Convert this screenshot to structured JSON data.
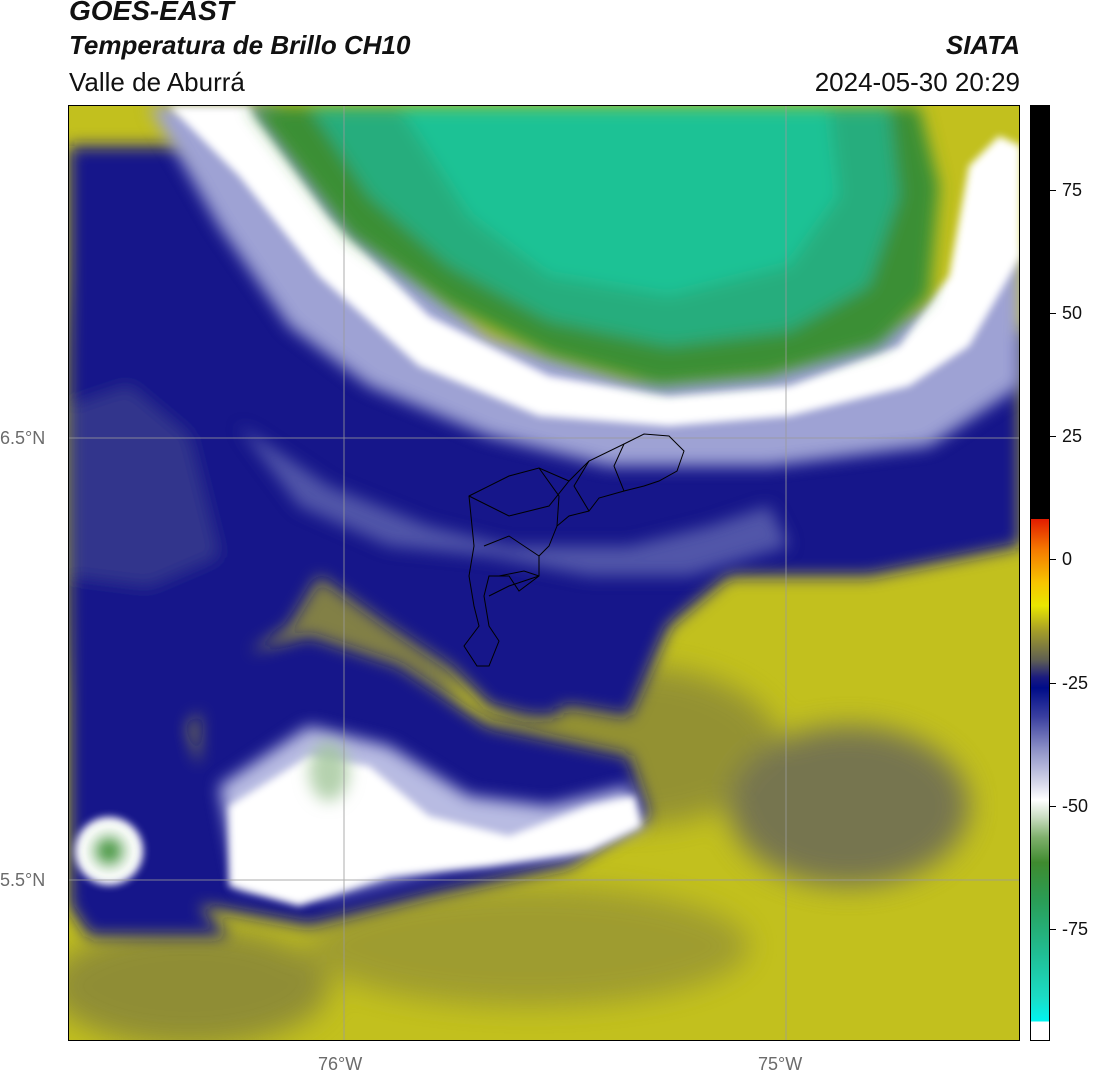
{
  "title": {
    "line1": "GOES-EAST",
    "line2": "Temperatura de Brillo CH10",
    "line3": "Valle de Aburrá"
  },
  "brand": "SIATA",
  "timestamp": "2024-05-30 20:29",
  "axes": {
    "lat_ticks": [
      "6.5°N",
      "5.5°N"
    ],
    "lon_ticks": [
      "76°W",
      "75°W"
    ]
  },
  "colorbar": {
    "ticks": [
      "75",
      "50",
      "25",
      "0",
      "-25",
      "-50",
      "-75"
    ]
  },
  "colors": {
    "high_cold_cloud": "#20bf96",
    "cloud_edge": "#ffffff",
    "mid_cloud": "#000c88",
    "low_level": "#c8c71c",
    "grid": "#9a9a9a",
    "boundary": "#000000"
  }
}
